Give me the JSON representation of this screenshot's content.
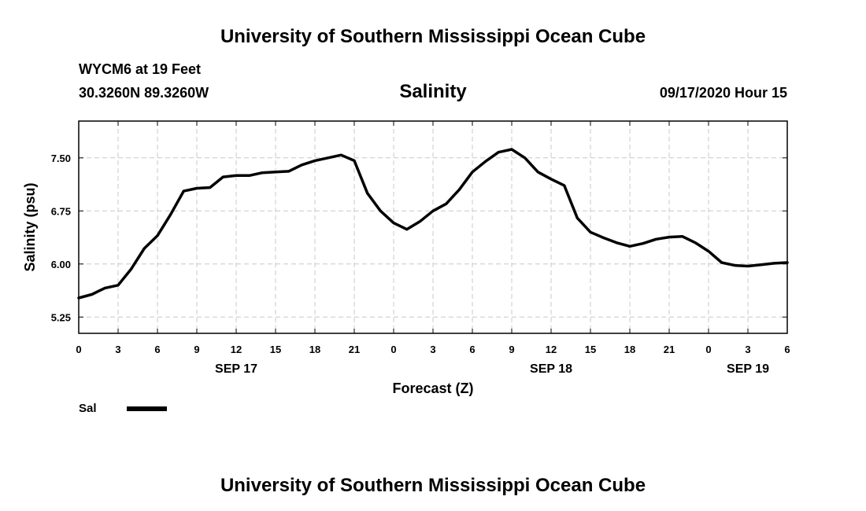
{
  "header": "University of Southern Mississippi Ocean Cube",
  "footer": "University of Southern Mississippi Ocean Cube",
  "station": "WYCM6 at 19 Feet",
  "location": "30.3260N 89.3260W",
  "issued": "09/17/2020 Hour 15",
  "legend": {
    "label": "Sal",
    "color": "#000000"
  },
  "chart_data": {
    "type": "line",
    "title": "Salinity",
    "xlabel": "Forecast (Z)",
    "ylabel": "Salinity (psu)",
    "xlim": [
      0,
      54
    ],
    "ylim": [
      5.02,
      8.02
    ],
    "grid": true,
    "legend_position": "bottom-left",
    "x_ticks": [
      0,
      3,
      6,
      9,
      12,
      15,
      18,
      21,
      24,
      27,
      30,
      33,
      36,
      39,
      42,
      45,
      48,
      51,
      54
    ],
    "x_tick_labels": [
      "0",
      "3",
      "6",
      "9",
      "12",
      "15",
      "18",
      "21",
      "0",
      "3",
      "6",
      "9",
      "12",
      "15",
      "18",
      "21",
      "0",
      "3",
      "6"
    ],
    "y_ticks": [
      5.25,
      6.0,
      6.75,
      7.5
    ],
    "y_tick_labels": [
      "5.25",
      "6.00",
      "6.75",
      "7.50"
    ],
    "date_labels": [
      {
        "x": 12,
        "text": "SEP 17"
      },
      {
        "x": 36,
        "text": "SEP 18"
      },
      {
        "x": 51,
        "text": "SEP 19"
      }
    ],
    "series": [
      {
        "name": "Sal",
        "x": [
          0,
          1,
          2,
          3,
          4,
          5,
          6,
          7,
          8,
          9,
          10,
          11,
          12,
          13,
          14,
          15,
          16,
          17,
          18,
          19,
          20,
          21,
          22,
          23,
          24,
          25,
          26,
          27,
          28,
          29,
          30,
          31,
          32,
          33,
          34,
          35,
          36,
          37,
          38,
          39,
          40,
          41,
          42,
          43,
          44,
          45,
          46,
          47,
          48,
          49,
          50,
          51,
          52,
          53,
          54
        ],
        "values": [
          5.52,
          5.57,
          5.66,
          5.7,
          5.93,
          6.22,
          6.4,
          6.7,
          7.03,
          7.07,
          7.08,
          7.23,
          7.25,
          7.25,
          7.29,
          7.3,
          7.31,
          7.4,
          7.46,
          7.5,
          7.54,
          7.46,
          7.0,
          6.75,
          6.58,
          6.49,
          6.6,
          6.75,
          6.85,
          7.05,
          7.3,
          7.45,
          7.58,
          7.62,
          7.5,
          7.3,
          7.2,
          7.11,
          6.65,
          6.45,
          6.37,
          6.3,
          6.25,
          6.29,
          6.35,
          6.38,
          6.39,
          6.3,
          6.18,
          6.02,
          5.98,
          5.97,
          5.99,
          6.01,
          6.02
        ]
      }
    ]
  }
}
